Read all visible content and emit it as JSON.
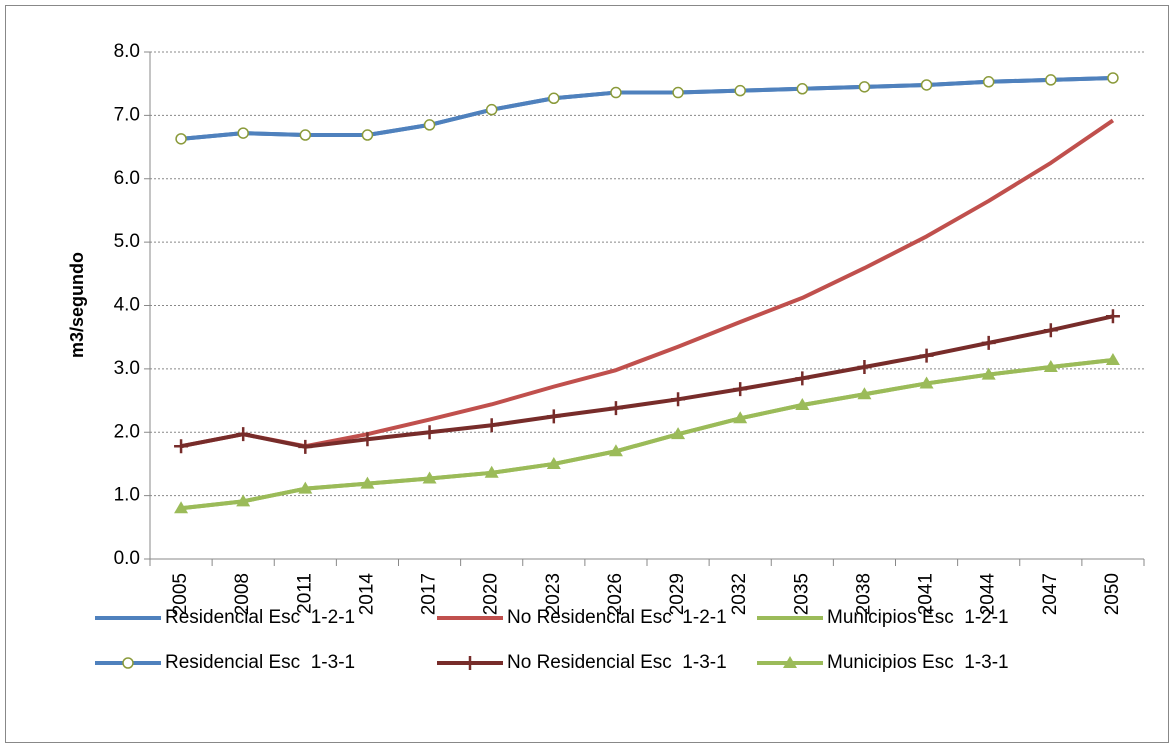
{
  "chart_data": {
    "type": "line",
    "ylabel": "m3/segundo",
    "categories": [
      "2005",
      "2008",
      "2011",
      "2014",
      "2017",
      "2020",
      "2023",
      "2026",
      "2029",
      "2032",
      "2035",
      "2038",
      "2041",
      "2044",
      "2047",
      "2050"
    ],
    "ylim": [
      0,
      8
    ],
    "yticks": [
      {
        "value": 0,
        "label": "0.0"
      },
      {
        "value": 1,
        "label": "1.0"
      },
      {
        "value": 2,
        "label": "2.0"
      },
      {
        "value": 3,
        "label": "3.0"
      },
      {
        "value": 4,
        "label": "4.0"
      },
      {
        "value": 5,
        "label": "5.0"
      },
      {
        "value": 6,
        "label": "6.0"
      },
      {
        "value": 7,
        "label": "7.0"
      },
      {
        "value": 8,
        "label": "8.0"
      }
    ],
    "grid": true,
    "legend": "bottom",
    "series": [
      {
        "name": "Residencial Esc  1-2-1",
        "color": "#4f81bd",
        "marker": "none",
        "values": [
          6.63,
          6.72,
          6.69,
          6.69,
          6.85,
          7.09,
          7.27,
          7.36,
          7.36,
          7.39,
          7.42,
          7.45,
          7.48,
          7.53,
          7.56,
          7.59
        ]
      },
      {
        "name": "No Residencial Esc  1-2-1",
        "color": "#c0504d",
        "marker": "none",
        "values": [
          1.78,
          1.97,
          1.78,
          1.97,
          2.2,
          2.44,
          2.72,
          2.98,
          3.35,
          3.74,
          4.12,
          4.59,
          5.09,
          5.65,
          6.25,
          6.92
        ]
      },
      {
        "name": "Municipios Esc  1-2-1",
        "color": "#9bbb59",
        "marker": "none",
        "values": [
          0.8,
          0.91,
          1.11,
          1.19,
          1.27,
          1.36,
          1.5,
          1.7,
          1.97,
          2.22,
          2.43,
          2.6,
          2.77,
          2.91,
          3.03,
          3.14
        ]
      },
      {
        "name": "Residencial Esc  1-3-1",
        "color": "#4f81bd",
        "marker": "circle",
        "marker_color": "#8a9a3a",
        "values": [
          6.63,
          6.72,
          6.69,
          6.69,
          6.85,
          7.09,
          7.27,
          7.36,
          7.36,
          7.39,
          7.42,
          7.45,
          7.48,
          7.53,
          7.56,
          7.59
        ]
      },
      {
        "name": "No Residencial Esc  1-3-1",
        "color": "#772c2a",
        "marker": "plus",
        "marker_color": "#772c2a",
        "values": [
          1.78,
          1.97,
          1.77,
          1.89,
          2.0,
          2.11,
          2.25,
          2.38,
          2.52,
          2.68,
          2.85,
          3.03,
          3.21,
          3.41,
          3.61,
          3.83
        ]
      },
      {
        "name": "Municipios Esc  1-3-1",
        "color": "#9bbb59",
        "marker": "triangle",
        "marker_color": "#9bbb59",
        "values": [
          0.8,
          0.91,
          1.11,
          1.19,
          1.27,
          1.36,
          1.5,
          1.7,
          1.97,
          2.22,
          2.43,
          2.6,
          2.77,
          2.91,
          3.03,
          3.14
        ]
      }
    ]
  }
}
